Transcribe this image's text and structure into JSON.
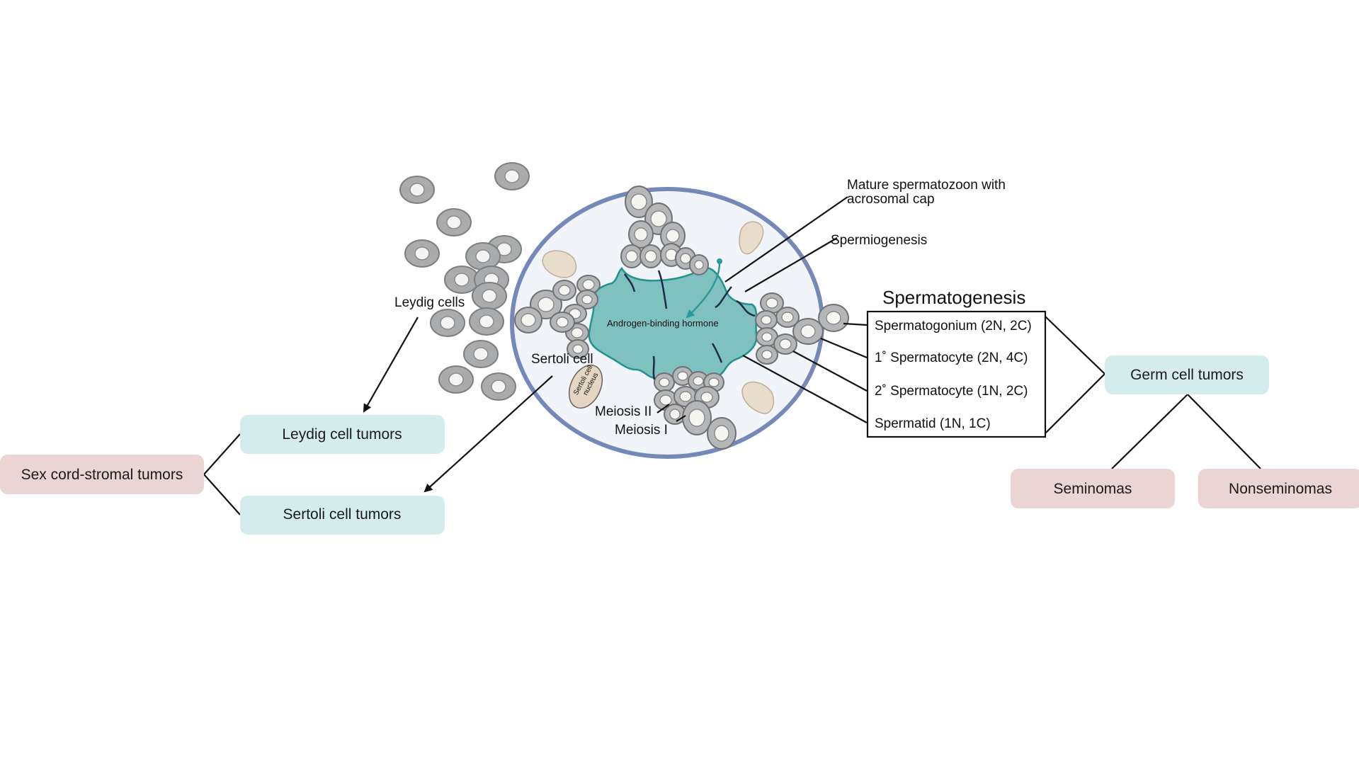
{
  "labels": {
    "leydig_cells": "Leydig cells",
    "sertoli_cell": "Sertoli cell",
    "sertoli_nucleus_line1": "Sertoli cell",
    "sertoli_nucleus_line2": "nucleus",
    "androgen": "Androgen-binding hormone",
    "meiosis2": "Meiosis II",
    "meiosis1": "Meiosis I",
    "mature_line1": "Mature spermatozoon with",
    "mature_line2": "acrosomal cap",
    "spermiogenesis": "Spermiogenesis",
    "spermatogenesis_title": "Spermatogenesis"
  },
  "spermatogenesis_stages": [
    "Spermatogonium (2N, 2C)",
    "1˚ Spermatocyte (2N, 4C)",
    "2˚ Spermatocyte (1N, 2C)",
    "Spermatid (1N, 1C)"
  ],
  "boxes": {
    "sex_cord": "Sex cord-stromal tumors",
    "leydig_tumors": "Leydig cell tumors",
    "sertoli_tumors": "Sertoli cell tumors",
    "germ_cell": "Germ cell tumors",
    "seminomas": "Seminomas",
    "nonseminomas": "Nonseminomas"
  },
  "colors": {
    "teal_box": "#d5ecec",
    "pink_box": "#ead4d4",
    "lumen": "#7fc1bf",
    "tubule_border": "#7589b8",
    "tubule_fill": "#f1f4f8"
  }
}
